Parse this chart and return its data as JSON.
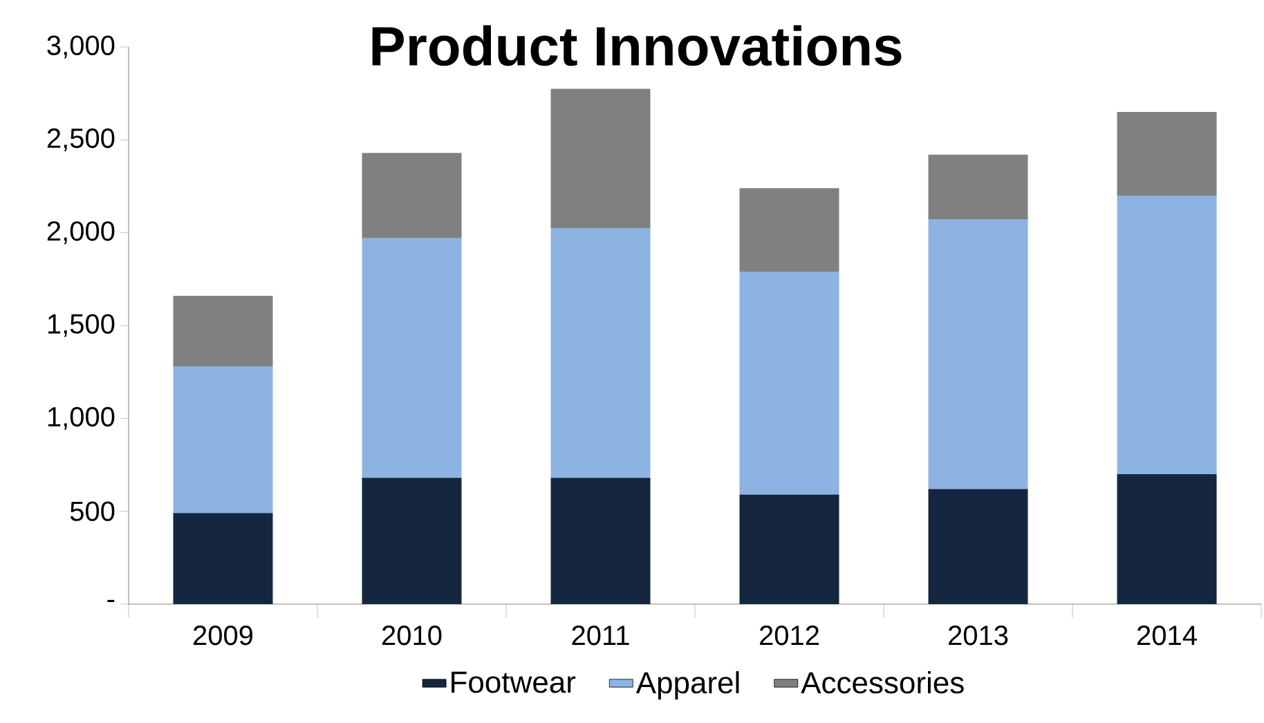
{
  "chart_data": {
    "type": "bar",
    "title": "Product Innovations",
    "stacked": true,
    "legend": "bottom",
    "grid": false,
    "categories": [
      "2009",
      "2010",
      "2011",
      "2012",
      "2013",
      "2014"
    ],
    "series": [
      {
        "name": "Footwear",
        "color": "#14273f",
        "values": [
          490,
          680,
          680,
          590,
          620,
          700
        ]
      },
      {
        "name": "Apparel",
        "color": "#8db3e2",
        "values": [
          790,
          1290,
          1345,
          1200,
          1450,
          1500
        ]
      },
      {
        "name": "Accessories",
        "color": "#808080",
        "values": [
          380,
          460,
          750,
          450,
          350,
          450
        ]
      }
    ],
    "ylim": [
      0,
      3000
    ],
    "yticks": [
      {
        "value": 0,
        "label": "-"
      },
      {
        "value": 500,
        "label": "500"
      },
      {
        "value": 1000,
        "label": "1,000"
      },
      {
        "value": 1500,
        "label": "1,500"
      },
      {
        "value": 2000,
        "label": "2,000"
      },
      {
        "value": 2500,
        "label": "2,500"
      },
      {
        "value": 3000,
        "label": "3,000"
      }
    ]
  }
}
